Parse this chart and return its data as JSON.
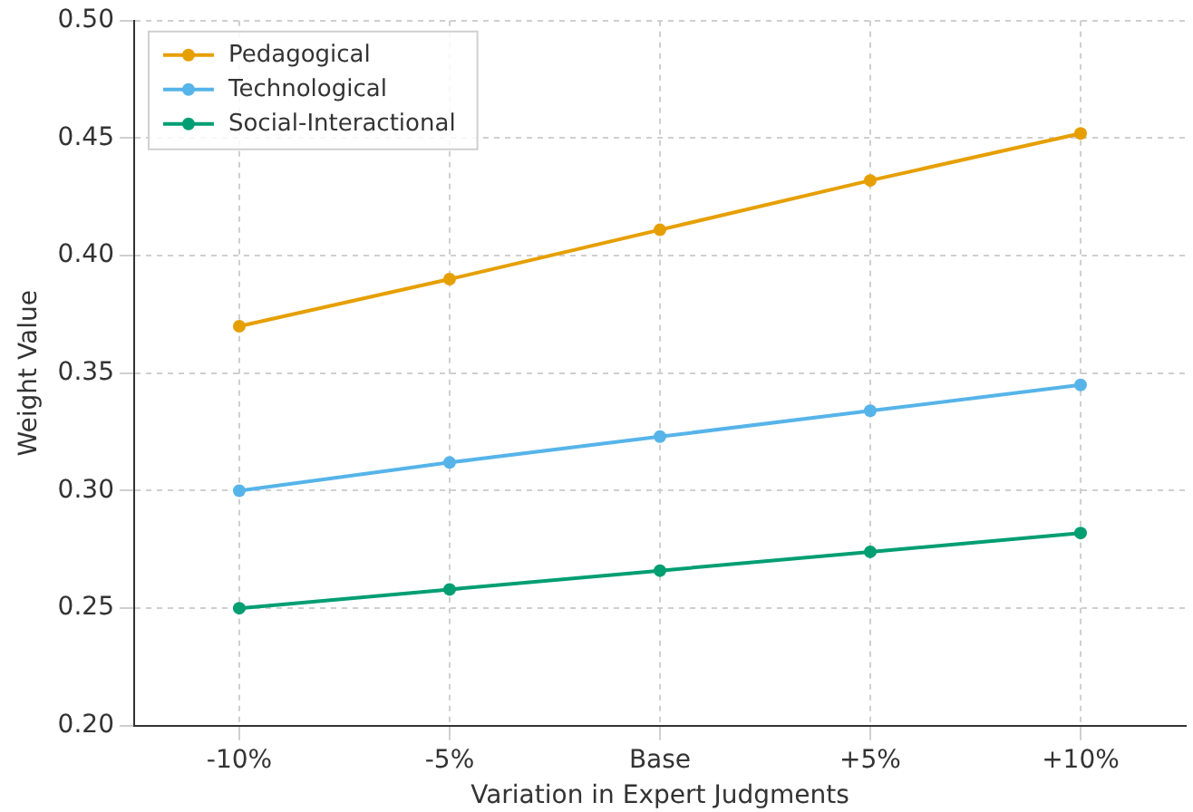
{
  "chart_data": {
    "type": "line",
    "xlabel": "Variation in Expert Judgments",
    "ylabel": "Weight Value",
    "categories": [
      "-10%",
      "-5%",
      "Base",
      "+5%",
      "+10%"
    ],
    "series": [
      {
        "name": "Pedagogical",
        "color": "#e69f00",
        "values": [
          0.37,
          0.39,
          0.411,
          0.432,
          0.452
        ]
      },
      {
        "name": "Technological",
        "color": "#56b4e9",
        "values": [
          0.3,
          0.312,
          0.323,
          0.334,
          0.345
        ]
      },
      {
        "name": "Social-Interactional",
        "color": "#009e73",
        "values": [
          0.25,
          0.258,
          0.266,
          0.274,
          0.282
        ]
      }
    ],
    "ylim": [
      0.2,
      0.5
    ],
    "yticks": [
      {
        "value": 0.2,
        "label": "0.20"
      },
      {
        "value": 0.25,
        "label": "0.25"
      },
      {
        "value": 0.3,
        "label": "0.30"
      },
      {
        "value": 0.35,
        "label": "0.35"
      },
      {
        "value": 0.4,
        "label": "0.40"
      },
      {
        "value": 0.45,
        "label": "0.45"
      },
      {
        "value": 0.5,
        "label": "0.50"
      }
    ],
    "grid": true,
    "legend": "top left",
    "marker": "circle",
    "line_style": "solid"
  }
}
